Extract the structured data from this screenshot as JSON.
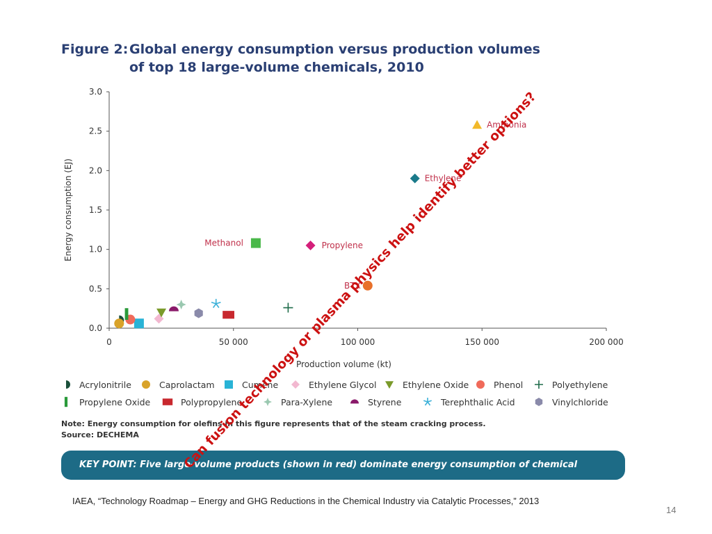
{
  "figure": {
    "label": "Figure 2:",
    "title_line1": "Global energy consumption versus production volumes",
    "title_line2": "of top 18 large-volume chemicals, 2010"
  },
  "chart_data": {
    "type": "scatter",
    "title": "Global energy consumption versus production volumes of top 18 large-volume chemicals, 2010",
    "xlabel": "Production volume (kt)",
    "ylabel": "Energy consumption (EJ)",
    "xlim": [
      0,
      200000
    ],
    "ylim": [
      0,
      3.0
    ],
    "x_ticks": [
      0,
      50000,
      100000,
      150000,
      200000
    ],
    "x_tick_labels": [
      "0",
      "50 000",
      "100 000",
      "150 000",
      "200 000"
    ],
    "y_ticks": [
      0,
      0.5,
      1.0,
      1.5,
      2.0,
      2.5,
      3.0
    ],
    "y_tick_labels": [
      "0.0",
      "0.5",
      "1.0",
      "1.5",
      "2.0",
      "2.5",
      "3.0"
    ],
    "grid": false,
    "legend_position": "bottom",
    "series": [
      {
        "name": "Acrylonitrile",
        "marker": "halfcircle",
        "color": "#1a4f3a",
        "x": 4000,
        "y": 0.1
      },
      {
        "name": "Caprolactam",
        "marker": "circle",
        "color": "#d9a32a",
        "x": 4000,
        "y": 0.06
      },
      {
        "name": "Cumene",
        "marker": "square",
        "color": "#29b3d6",
        "x": 12000,
        "y": 0.06
      },
      {
        "name": "Ethylene Glycol",
        "marker": "diamond",
        "color": "#f2b8d0",
        "x": 20000,
        "y": 0.12
      },
      {
        "name": "Ethylene Oxide",
        "marker": "triangle-down",
        "color": "#7a9a2a",
        "x": 21000,
        "y": 0.2
      },
      {
        "name": "Phenol",
        "marker": "circle",
        "color": "#f06a5a",
        "x": 8500,
        "y": 0.11
      },
      {
        "name": "Polyethylene",
        "marker": "plus",
        "color": "#1f6b4a",
        "x": 72000,
        "y": 0.26
      },
      {
        "name": "Propylene Oxide",
        "marker": "bar",
        "color": "#2a9a3a",
        "x": 7000,
        "y": 0.18
      },
      {
        "name": "Polypropylene",
        "marker": "rect",
        "color": "#c8282e",
        "x": 48000,
        "y": 0.17
      },
      {
        "name": "Para-Xylene",
        "marker": "star4",
        "color": "#9ac8b0",
        "x": 29000,
        "y": 0.3
      },
      {
        "name": "Styrene",
        "marker": "halfdome",
        "color": "#8a1a6a",
        "x": 26000,
        "y": 0.24
      },
      {
        "name": "Terephthalic Acid",
        "marker": "asterisk",
        "color": "#3ab0d8",
        "x": 43000,
        "y": 0.31
      },
      {
        "name": "Vinylchloride",
        "marker": "hexagon",
        "color": "#8a8aaa",
        "x": 36000,
        "y": 0.19
      },
      {
        "name": "Ammonia",
        "marker": "triangle",
        "color": "#f2b92a",
        "x": 148000,
        "y": 2.58
      },
      {
        "name": "Ethylene",
        "marker": "diamond",
        "color": "#1a7a8a",
        "x": 123000,
        "y": 1.9
      },
      {
        "name": "Methanol",
        "marker": "square",
        "color": "#4ab84a",
        "x": 59000,
        "y": 1.08
      },
      {
        "name": "Propylene",
        "marker": "diamond",
        "color": "#d4207a",
        "x": 81000,
        "y": 1.05
      },
      {
        "name": "BTX",
        "marker": "circle",
        "color": "#e8702a",
        "x": 104000,
        "y": 0.54
      }
    ],
    "annotations": [
      {
        "text": "Ammonia",
        "series": "Ammonia"
      },
      {
        "text": "Ethylene",
        "series": "Ethylene"
      },
      {
        "text": "Methanol",
        "series": "Methanol"
      },
      {
        "text": "Propylene",
        "series": "Propylene"
      },
      {
        "text": "BTX",
        "series": "BTX"
      }
    ],
    "legend_rows": [
      [
        "Acrylonitrile",
        "Caprolactam",
        "Cumene",
        "Ethylene Glycol",
        "Ethylene Oxide",
        "Phenol",
        "Polyethylene"
      ],
      [
        "Propylene Oxide",
        "Polypropylene",
        "Para-Xylene",
        "Styrene",
        "Terephthalic Acid",
        "Vinylchloride"
      ]
    ]
  },
  "note": {
    "line1": "Note: Energy consumption for olefins in this figure represents that of the steam cracking process.",
    "line2": "Source: DECHEMA"
  },
  "key_point": "KEY POINT: Five large-volume products (shown in red) dominate energy consumption of chemical processes.",
  "overlay_text": "Can fusion technology or plasma physics help identify better options?",
  "citation": "IAEA, “Technology Roadmap – Energy and GHG Reductions in the Chemical Industry via Catalytic Processes,” 2013",
  "page_number": "14",
  "colors": {
    "title": "#2a3f73",
    "keypoint_bg": "#1d6b86",
    "overlay": "#cc1111",
    "label_red": "#c0304a"
  }
}
